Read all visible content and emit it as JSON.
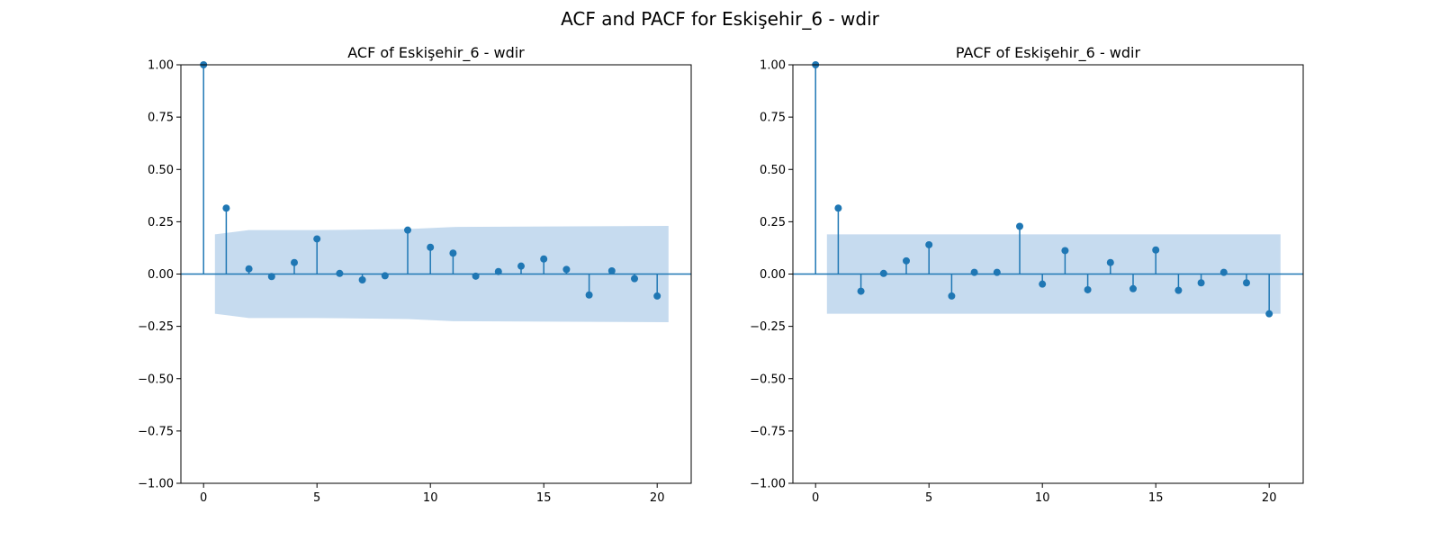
{
  "figure": {
    "title": "ACF and PACF for Eskişehir_6 - wdir"
  },
  "colors": {
    "stem": "#1f77b4",
    "confidence_band": "#c6dbef"
  },
  "chart_data": [
    {
      "type": "stem",
      "title": "ACF of Eskişehir_6 - wdir",
      "xlabel": "",
      "ylabel": "",
      "xlim": [
        -1,
        21.5
      ],
      "ylim": [
        -1.0,
        1.0
      ],
      "xticks": [
        0,
        5,
        10,
        15,
        20
      ],
      "xtick_labels": [
        "0",
        "5",
        "10",
        "15",
        "20"
      ],
      "yticks": [
        1.0,
        0.75,
        0.5,
        0.25,
        0.0,
        -0.25,
        -0.5,
        -0.75,
        -1.0
      ],
      "ytick_labels": [
        "1.00",
        "0.75",
        "0.50",
        "0.25",
        "0.00",
        "−0.25",
        "−0.50",
        "−0.75",
        "−1.00"
      ],
      "lags": [
        0,
        1,
        2,
        3,
        4,
        5,
        6,
        7,
        8,
        9,
        10,
        11,
        12,
        13,
        14,
        15,
        16,
        17,
        18,
        19,
        20
      ],
      "values": [
        1.0,
        0.315,
        0.025,
        -0.012,
        0.055,
        0.168,
        0.003,
        -0.028,
        -0.008,
        0.21,
        0.128,
        0.1,
        -0.01,
        0.012,
        0.038,
        0.072,
        0.022,
        -0.1,
        0.015,
        -0.022,
        -0.105
      ],
      "confidence_band": {
        "x": [
          0.5,
          2,
          5,
          9,
          11,
          20.5
        ],
        "upper": [
          0.19,
          0.21,
          0.21,
          0.215,
          0.225,
          0.23
        ],
        "lower": [
          -0.19,
          -0.21,
          -0.21,
          -0.215,
          -0.225,
          -0.23
        ]
      }
    },
    {
      "type": "stem",
      "title": "PACF of Eskişehir_6 - wdir",
      "xlabel": "",
      "ylabel": "",
      "xlim": [
        -1,
        21.5
      ],
      "ylim": [
        -1.0,
        1.0
      ],
      "xticks": [
        0,
        5,
        10,
        15,
        20
      ],
      "xtick_labels": [
        "0",
        "5",
        "10",
        "15",
        "20"
      ],
      "yticks": [
        1.0,
        0.75,
        0.5,
        0.25,
        0.0,
        -0.25,
        -0.5,
        -0.75,
        -1.0
      ],
      "ytick_labels": [
        "1.00",
        "0.75",
        "0.50",
        "0.25",
        "0.00",
        "−0.25",
        "−0.50",
        "−0.75",
        "−1.00"
      ],
      "lags": [
        0,
        1,
        2,
        3,
        4,
        5,
        6,
        7,
        8,
        9,
        10,
        11,
        12,
        13,
        14,
        15,
        16,
        17,
        18,
        19,
        20
      ],
      "values": [
        1.0,
        0.315,
        -0.082,
        0.003,
        0.063,
        0.14,
        -0.105,
        0.008,
        0.008,
        0.228,
        -0.048,
        0.112,
        -0.075,
        0.055,
        -0.07,
        0.115,
        -0.078,
        -0.042,
        0.008,
        -0.042,
        -0.19
      ],
      "confidence_band": {
        "x": [
          0.5,
          20.5
        ],
        "upper": [
          0.19,
          0.19
        ],
        "lower": [
          -0.19,
          -0.19
        ]
      }
    }
  ]
}
